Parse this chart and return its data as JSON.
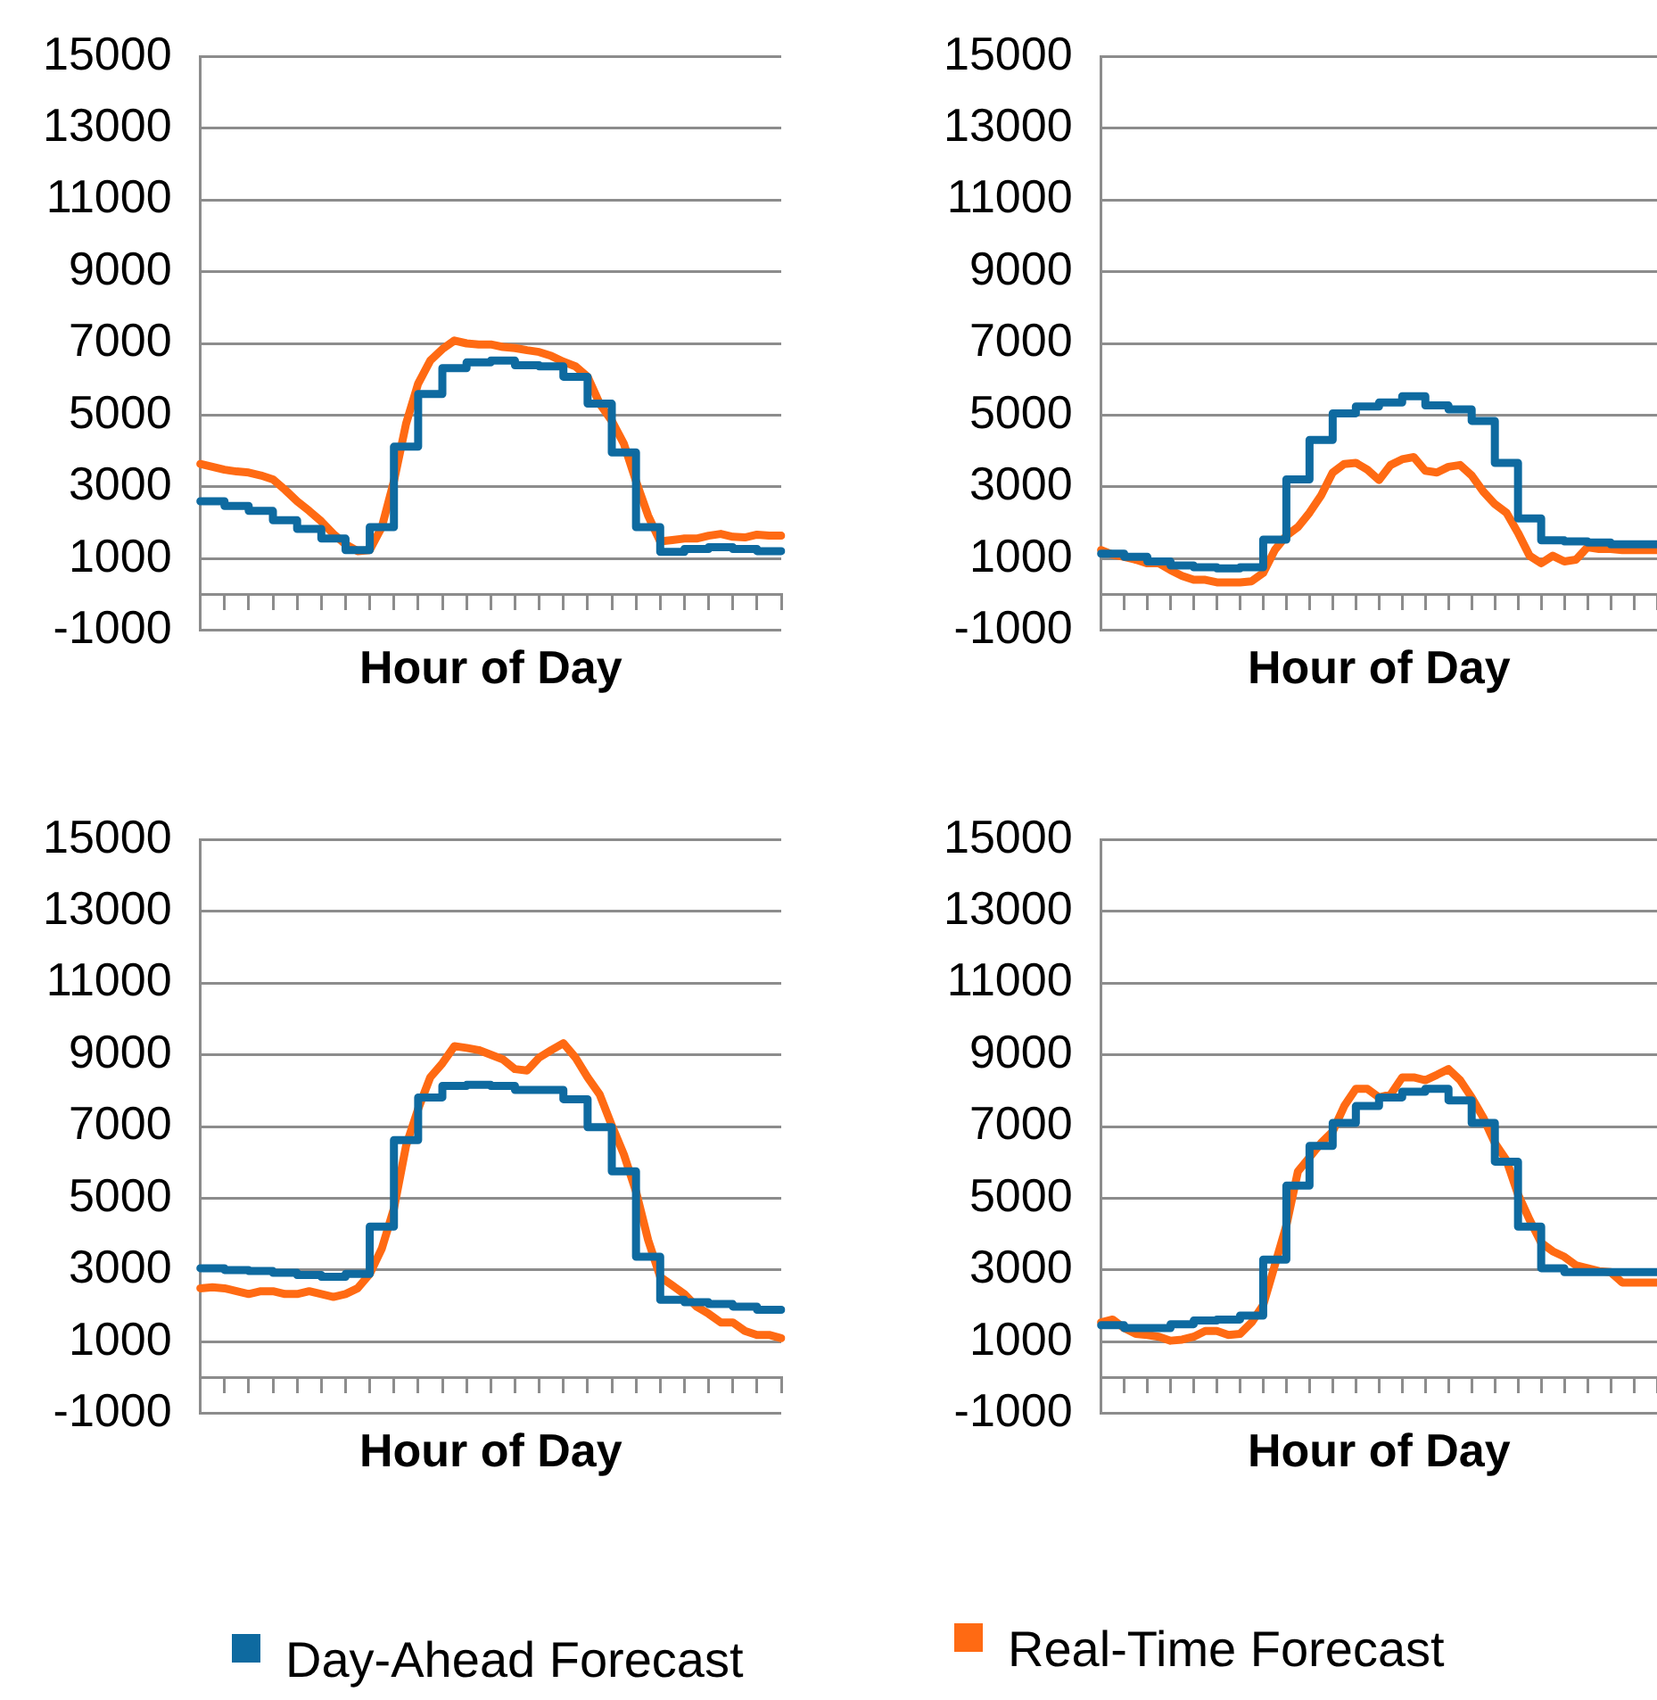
{
  "chart_data": [
    {
      "type": "line",
      "xlabel": "Hour of Day",
      "categories": [
        null,
        null,
        null,
        null,
        null,
        null,
        null,
        null,
        null,
        null,
        null,
        null,
        null,
        null,
        null,
        null,
        null,
        null,
        null,
        null,
        null,
        null,
        null,
        null,
        null,
        null,
        null,
        null,
        null,
        null,
        null,
        null,
        null,
        null,
        null,
        null,
        null,
        null,
        null,
        null,
        null,
        null,
        null,
        null,
        null,
        null,
        null,
        null,
        null
      ],
      "ylim": [
        -1000,
        15000
      ],
      "yticks": [
        -1000,
        1000,
        3000,
        5000,
        7000,
        9000,
        11000,
        13000,
        15000
      ],
      "grid": "y",
      "tick_labels": "y",
      "legend": "bottom",
      "series": [
        {
          "name": "Day-Ahead Forecast",
          "type": "step",
          "color": "#0e6aa0",
          "values": [
            2600,
            2600,
            2470,
            2470,
            2330,
            2330,
            2070,
            2070,
            1830,
            1830,
            1560,
            1560,
            1240,
            1240,
            1880,
            1880,
            4120,
            4120,
            5590,
            5590,
            6310,
            6310,
            6470,
            6470,
            6520,
            6520,
            6390,
            6390,
            6360,
            6360,
            6070,
            6070,
            5320,
            5320,
            3960,
            3960,
            1880,
            1880,
            1190,
            1190,
            1270,
            1270,
            1320,
            1320,
            1270,
            1270,
            1210,
            1210,
            1210
          ]
        },
        {
          "name": "Real-Time Forecast",
          "type": "line",
          "color": "#ff6a13",
          "values": [
            3640,
            3560,
            3480,
            3430,
            3400,
            3320,
            3210,
            2920,
            2600,
            2330,
            2040,
            1690,
            1400,
            1210,
            1240,
            1880,
            3160,
            4760,
            5880,
            6520,
            6840,
            7080,
            7000,
            6970,
            6970,
            6900,
            6870,
            6810,
            6760,
            6650,
            6490,
            6360,
            6070,
            5320,
            4840,
            4200,
            3160,
            2200,
            1480,
            1520,
            1560,
            1560,
            1640,
            1690,
            1610,
            1590,
            1670,
            1640,
            1640
          ]
        }
      ]
    },
    {
      "type": "line",
      "xlabel": "Hour of Day",
      "categories": [
        null,
        null,
        null,
        null,
        null,
        null,
        null,
        null,
        null,
        null,
        null,
        null,
        null,
        null,
        null,
        null,
        null,
        null,
        null,
        null,
        null,
        null,
        null,
        null,
        null,
        null,
        null,
        null,
        null,
        null,
        null,
        null,
        null,
        null,
        null,
        null,
        null,
        null,
        null,
        null,
        null,
        null,
        null,
        null,
        null,
        null,
        null,
        null,
        null
      ],
      "ylim": [
        -1000,
        15000
      ],
      "yticks": [
        -1000,
        1000,
        3000,
        5000,
        7000,
        9000,
        11000,
        13000,
        15000
      ],
      "grid": "y",
      "tick_labels": "y",
      "series": [
        {
          "type": "step",
          "color": "#0e6aa0",
          "values": [
            1140,
            1140,
            1050,
            1050,
            920,
            920,
            810,
            810,
            760,
            760,
            730,
            730,
            760,
            760,
            1530,
            1530,
            3210,
            3210,
            4310,
            4310,
            5050,
            5050,
            5240,
            5240,
            5350,
            5350,
            5530,
            5530,
            5270,
            5270,
            5160,
            5160,
            4840,
            4840,
            3670,
            3670,
            2120,
            2120,
            1510,
            1510,
            1480,
            1480,
            1450,
            1450,
            1400,
            1400,
            1400,
            1400,
            1400
          ]
        },
        {
          "type": "line",
          "color": "#ff6a13",
          "values": [
            1240,
            1110,
            1050,
            970,
            870,
            870,
            680,
            520,
            410,
            410,
            340,
            340,
            340,
            370,
            600,
            1240,
            1640,
            1880,
            2280,
            2760,
            3400,
            3640,
            3670,
            3480,
            3190,
            3610,
            3770,
            3830,
            3450,
            3400,
            3560,
            3610,
            3320,
            2870,
            2520,
            2280,
            1720,
            1080,
            870,
            1080,
            920,
            970,
            1320,
            1270,
            1270,
            1240,
            1240,
            1240,
            1240
          ]
        }
      ]
    },
    {
      "type": "line",
      "xlabel": "Hour of Day",
      "categories": [
        null,
        null,
        null,
        null,
        null,
        null,
        null,
        null,
        null,
        null,
        null,
        null,
        null,
        null,
        null,
        null,
        null,
        null,
        null,
        null,
        null,
        null,
        null,
        null,
        null,
        null,
        null,
        null,
        null,
        null,
        null,
        null,
        null,
        null,
        null,
        null,
        null,
        null,
        null,
        null,
        null,
        null,
        null,
        null,
        null,
        null,
        null,
        null,
        null
      ],
      "ylim": [
        -1000,
        15000
      ],
      "yticks": [
        -1000,
        1000,
        3000,
        5000,
        7000,
        9000,
        11000,
        13000,
        15000
      ],
      "grid": "y",
      "tick_labels": "y",
      "series": [
        {
          "type": "step",
          "color": "#0e6aa0",
          "values": [
            3050,
            3050,
            3000,
            3000,
            2970,
            2970,
            2920,
            2920,
            2860,
            2860,
            2810,
            2810,
            2890,
            2890,
            4210,
            4210,
            6620,
            6620,
            7810,
            7810,
            8130,
            8130,
            8160,
            8160,
            8130,
            8130,
            8020,
            8020,
            8020,
            8020,
            7760,
            7760,
            6980,
            6980,
            5750,
            5750,
            3370,
            3370,
            2170,
            2170,
            2100,
            2100,
            2050,
            2050,
            1980,
            1980,
            1890,
            1890,
            1890
          ]
        },
        {
          "type": "line",
          "color": "#ff6a13",
          "values": [
            2490,
            2520,
            2490,
            2410,
            2330,
            2410,
            2410,
            2330,
            2330,
            2410,
            2330,
            2250,
            2330,
            2490,
            2890,
            3600,
            4710,
            6460,
            7490,
            8370,
            8760,
            9240,
            9190,
            9130,
            9000,
            8870,
            8600,
            8560,
            8920,
            9130,
            9320,
            8920,
            8370,
            7890,
            7030,
            6220,
            5190,
            3840,
            2810,
            2570,
            2330,
            1980,
            1780,
            1540,
            1540,
            1300,
            1190,
            1190,
            1100
          ]
        }
      ]
    },
    {
      "type": "line",
      "xlabel": "Hour of Day",
      "categories": [
        null,
        null,
        null,
        null,
        null,
        null,
        null,
        null,
        null,
        null,
        null,
        null,
        null,
        null,
        null,
        null,
        null,
        null,
        null,
        null,
        null,
        null,
        null,
        null,
        null,
        null,
        null,
        null,
        null,
        null,
        null,
        null,
        null,
        null,
        null,
        null,
        null,
        null,
        null,
        null,
        null,
        null,
        null,
        null,
        null,
        null,
        null,
        null,
        null
      ],
      "ylim": [
        -1000,
        15000
      ],
      "yticks": [
        -1000,
        1000,
        3000,
        5000,
        7000,
        9000,
        11000,
        13000,
        15000
      ],
      "grid": "y",
      "tick_labels": "y",
      "series": [
        {
          "type": "step",
          "color": "#0e6aa0",
          "values": [
            1460,
            1460,
            1380,
            1380,
            1380,
            1380,
            1490,
            1490,
            1590,
            1590,
            1620,
            1620,
            1730,
            1730,
            3290,
            3290,
            5350,
            5350,
            6460,
            6460,
            7100,
            7100,
            7570,
            7570,
            7810,
            7810,
            7970,
            7970,
            8050,
            8050,
            7730,
            7730,
            7100,
            7100,
            6020,
            6020,
            4210,
            4210,
            3050,
            3050,
            2940,
            2940,
            2940,
            2940,
            2940,
            2940,
            2940,
            2940,
            2940
          ]
        },
        {
          "type": "line",
          "color": "#ff6a13",
          "values": [
            1540,
            1620,
            1380,
            1220,
            1190,
            1140,
            1030,
            1060,
            1140,
            1300,
            1300,
            1190,
            1220,
            1540,
            2020,
            3130,
            4240,
            5750,
            6140,
            6540,
            6860,
            7570,
            8050,
            8050,
            7810,
            7890,
            8370,
            8370,
            8290,
            8440,
            8600,
            8290,
            7810,
            7250,
            6540,
            6060,
            5110,
            4400,
            3760,
            3520,
            3370,
            3130,
            3050,
            2970,
            2940,
            2650,
            2650,
            2650,
            2650
          ]
        }
      ]
    }
  ]
}
